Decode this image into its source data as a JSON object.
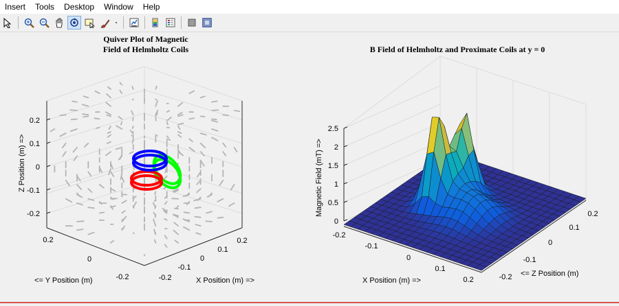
{
  "menu": [
    "Insert",
    "Tools",
    "Desktop",
    "Window",
    "Help"
  ],
  "toolbar": {
    "buttons": [
      {
        "name": "pointer-icon"
      },
      {
        "name": "zoom-in-icon"
      },
      {
        "name": "zoom-out-icon"
      },
      {
        "name": "pan-hand-icon"
      },
      {
        "name": "rotate-3d-icon",
        "active": true
      },
      {
        "name": "data-cursor-icon"
      },
      {
        "name": "brush-icon"
      },
      {
        "name": "brush-dropdown-icon"
      },
      {
        "name": "link-plot-icon"
      },
      {
        "name": "colorbar-icon"
      },
      {
        "name": "legend-icon"
      },
      {
        "name": "hide-plot-tools-icon"
      },
      {
        "name": "show-plot-tools-icon"
      }
    ]
  },
  "chart_data": [
    {
      "type": "quiver3d",
      "title": [
        "Quiver Plot of Magnetic",
        "Field of Helmholtz Coils"
      ],
      "xlabel": "X Position (m) =>",
      "ylabel": "<= Y Position (m)",
      "zlabel": "Z Position (m) =>",
      "z_ticks": [
        "0.2",
        "0.1",
        "0",
        "-0.1",
        "-0.2"
      ],
      "y_ticks": [
        "0.2",
        "0",
        "-0.2"
      ],
      "x_ticks": [
        "-0.2",
        "-0.1",
        "0",
        "0.1",
        "0.2"
      ],
      "coil_colors": [
        "#0000ff",
        "#00ff00",
        "#ff0000"
      ],
      "arrow_color": "#b4b4b4"
    },
    {
      "type": "surface",
      "title": "B Field of Helmholtz and Proximate Coils at y = 0",
      "xlabel": "X Position (m) =>",
      "ylabel": "<= Z Position (m)",
      "zlabel": "Magnetic Field (mT) =>",
      "z_ticks": [
        "2.5",
        "2",
        "1.5",
        "1",
        "0.5",
        "0"
      ],
      "x_ticks": [
        "-0.2",
        "-0.1",
        "0",
        "0.1",
        "0.2"
      ],
      "y_ticks": [
        "0.2",
        "0.1",
        "0",
        "-0.1",
        "-0.2"
      ],
      "zlim": [
        0,
        2.5
      ],
      "grid": true,
      "colormap": "parula"
    }
  ]
}
